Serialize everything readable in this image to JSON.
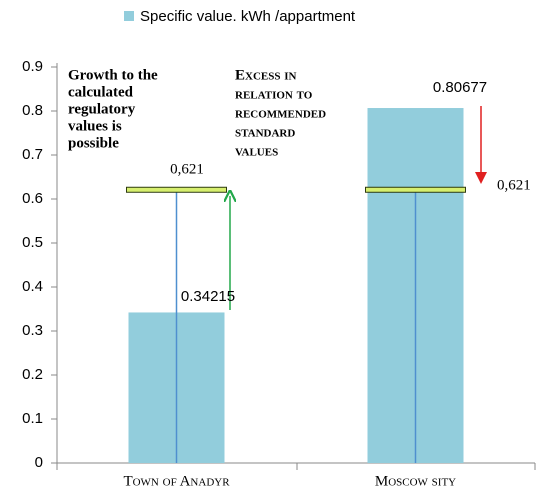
{
  "chart_data": {
    "type": "bar",
    "legend": "Specific value. kWh /appartment",
    "categories": [
      "Town of Anadyr",
      "Moscow sity"
    ],
    "values": [
      0.34215,
      0.80677
    ],
    "color": "#92cddc",
    "ylim": [
      0,
      0.9
    ],
    "yticks": [
      0,
      0.1,
      0.2,
      0.3,
      0.4,
      0.5,
      0.6,
      0.7,
      0.8,
      0.9
    ],
    "reference_lines": [
      {
        "value": 0.621,
        "label": "0,621"
      },
      {
        "value": 0.621,
        "label": "0,621"
      }
    ],
    "annotations": [
      {
        "lines": [
          "Growth to the",
          "calculated",
          "regulatory",
          "values is",
          "possible"
        ],
        "color": "#22a84a"
      },
      {
        "lines": [
          "Excess in",
          "relation to",
          "recommended",
          "standard",
          "values"
        ],
        "color": "#ff0000"
      }
    ]
  }
}
